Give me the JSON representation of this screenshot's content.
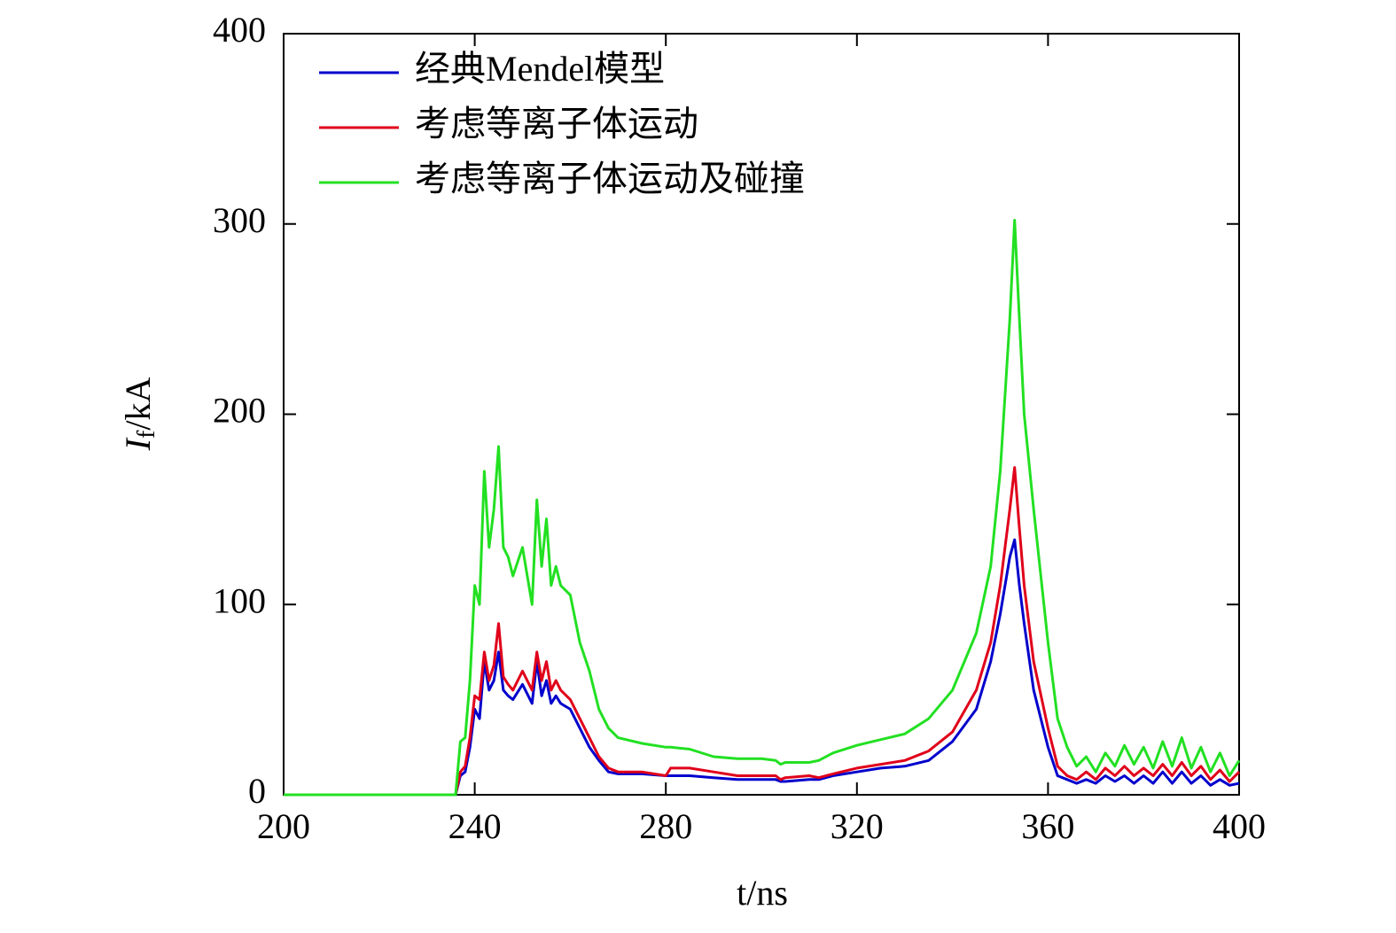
{
  "chart_data": {
    "type": "line",
    "xlabel": "t/ns",
    "ylabel": [
      "I",
      "f",
      "/kA"
    ],
    "x": [
      200,
      236,
      237,
      238,
      239,
      240,
      241,
      242,
      243,
      244,
      245,
      246,
      247,
      248,
      250,
      252,
      253,
      254,
      255,
      256,
      257,
      258,
      260,
      262,
      264,
      266,
      268,
      270,
      275,
      280,
      281,
      285,
      290,
      295,
      300,
      303,
      304,
      305,
      310,
      312,
      315,
      320,
      325,
      330,
      335,
      340,
      345,
      348,
      350,
      352,
      353,
      354,
      355,
      357,
      360,
      362,
      364,
      366,
      368,
      370,
      372,
      374,
      376,
      378,
      380,
      382,
      384,
      386,
      388,
      390,
      392,
      394,
      396,
      398,
      400
    ],
    "series": [
      {
        "name": "经典Mendel模型",
        "color": "#0000cc",
        "values": [
          0,
          0,
          10,
          12,
          25,
          45,
          40,
          70,
          55,
          60,
          75,
          55,
          52,
          50,
          58,
          48,
          70,
          52,
          60,
          48,
          52,
          48,
          45,
          35,
          25,
          18,
          12,
          11,
          11,
          10,
          10,
          10,
          9,
          8,
          8,
          8,
          7,
          7,
          8,
          8,
          10,
          12,
          14,
          15,
          18,
          28,
          45,
          70,
          95,
          125,
          134,
          110,
          90,
          55,
          25,
          10,
          8,
          6,
          8,
          6,
          10,
          7,
          10,
          6,
          10,
          6,
          12,
          6,
          12,
          6,
          10,
          5,
          8,
          5,
          6
        ]
      },
      {
        "name": "考虑等离子体运动",
        "color": "#e0001a",
        "values": [
          0,
          0,
          12,
          15,
          30,
          52,
          50,
          75,
          60,
          68,
          90,
          62,
          58,
          55,
          65,
          55,
          75,
          60,
          70,
          55,
          60,
          55,
          50,
          40,
          30,
          20,
          14,
          12,
          12,
          10,
          14,
          14,
          12,
          10,
          10,
          10,
          8,
          9,
          10,
          9,
          11,
          14,
          16,
          18,
          23,
          33,
          55,
          80,
          110,
          150,
          172,
          140,
          110,
          70,
          35,
          15,
          10,
          8,
          12,
          8,
          14,
          10,
          15,
          10,
          14,
          10,
          16,
          10,
          17,
          10,
          15,
          8,
          13,
          7,
          12
        ]
      },
      {
        "name": "考虑等离子体运动及碰撞",
        "color": "#22e022",
        "values": [
          0,
          0,
          28,
          30,
          60,
          110,
          100,
          170,
          130,
          150,
          183,
          130,
          125,
          115,
          130,
          100,
          155,
          120,
          145,
          110,
          120,
          110,
          105,
          80,
          65,
          45,
          35,
          30,
          27,
          25,
          25,
          24,
          20,
          19,
          19,
          18,
          16,
          17,
          17,
          18,
          22,
          26,
          29,
          32,
          40,
          55,
          85,
          120,
          170,
          250,
          302,
          250,
          200,
          150,
          80,
          40,
          25,
          15,
          20,
          12,
          22,
          15,
          26,
          16,
          25,
          14,
          28,
          15,
          30,
          14,
          25,
          12,
          22,
          10,
          18
        ]
      }
    ],
    "xlim": [
      200,
      400
    ],
    "xticks": [
      200,
      240,
      280,
      320,
      360,
      400
    ],
    "ylim": [
      0,
      400
    ],
    "yticks": [
      0,
      100,
      200,
      300,
      400
    ],
    "legend": "upper left"
  }
}
